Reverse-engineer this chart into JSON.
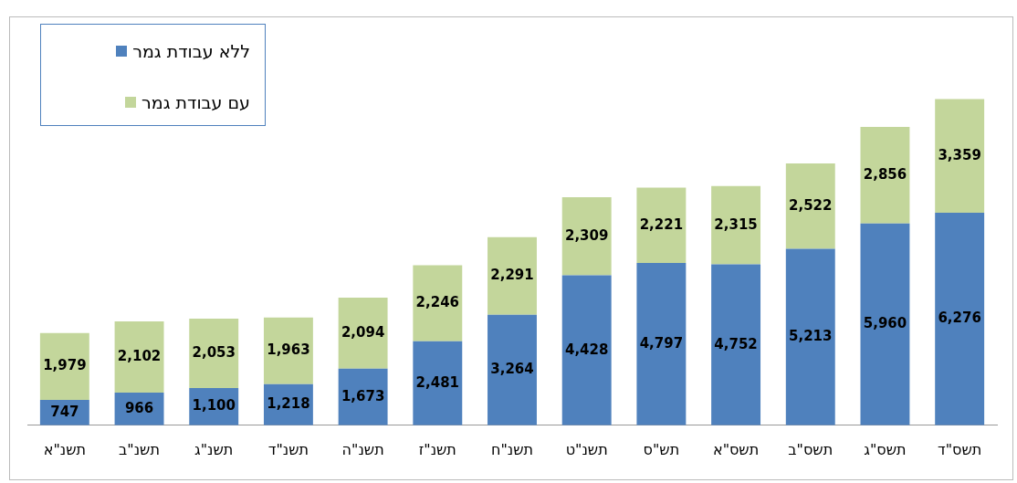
{
  "chart_data": {
    "type": "bar",
    "stacked": true,
    "grid": false,
    "legend": "top left",
    "categories": [
      "תשנ\"א",
      "תשנ\"ב",
      "תשנ\"ג",
      "תשנ\"ד",
      "תשנ\"ה",
      "תשנ\"ז",
      "תשנ\"ח",
      "תשנ\"ט",
      "תש\"ס",
      "תשס\"א",
      "תשס\"ב",
      "תשס\"ג",
      "תשס\"ד"
    ],
    "tick_labels": "x",
    "series": [
      {
        "name": "ללא עבודת גמר",
        "color": "#4f81bd",
        "values": [
          747,
          966,
          1100,
          1218,
          1673,
          2481,
          3264,
          4428,
          4797,
          4752,
          5213,
          5960,
          6276
        ],
        "value_labels": [
          "747",
          "966",
          "1,100",
          "1,218",
          "1,673",
          "2,481",
          "3,264",
          "4,428",
          "4,797",
          "4,752",
          "5,213",
          "5,960",
          "6,276"
        ]
      },
      {
        "name": "עם עבודת גמר",
        "color": "#c3d69b",
        "values": [
          1979,
          2102,
          2053,
          1963,
          2094,
          2246,
          2291,
          2309,
          2221,
          2315,
          2522,
          2856,
          3359
        ],
        "value_labels": [
          "1,979",
          "2,102",
          "2,053",
          "1,963",
          "2,094",
          "2,246",
          "2,291",
          "2,309",
          "2,221",
          "2,315",
          "2,522",
          "2,856",
          "3,359"
        ]
      }
    ]
  }
}
